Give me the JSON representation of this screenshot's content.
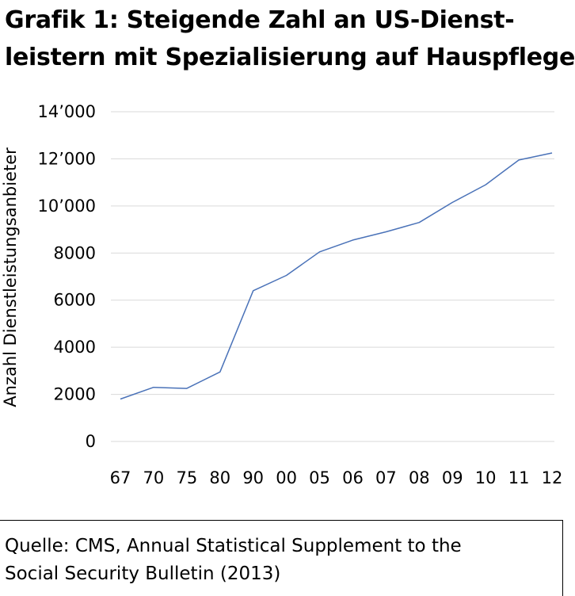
{
  "title": {
    "line1": "Grafik 1: Steigende Zahl an US-Dienst-",
    "line2": "leistern mit Spezialisierung auf Hauspflege"
  },
  "source": {
    "line1": "Quelle: CMS, Annual Statistical Supplement to the",
    "line2": "Social Security Bulletin (2013)"
  },
  "colors": {
    "line": "#4a72b8",
    "grid": "#d9d9d9"
  },
  "chart_data": {
    "type": "line",
    "title": "Grafik 1: Steigende Zahl an US-Dienstleistern mit Spezialisierung auf Hauspflege",
    "xlabel": "",
    "ylabel": "Anzahl Dienstleistungsanbieter",
    "categories": [
      "67",
      "70",
      "75",
      "80",
      "90",
      "00",
      "05",
      "06",
      "07",
      "08",
      "09",
      "10",
      "11",
      "12"
    ],
    "series": [
      {
        "values": [
          1800,
          2300,
          2250,
          2950,
          6400,
          7050,
          8050,
          8550,
          8900,
          9300,
          10150,
          10900,
          11950,
          12250
        ]
      }
    ],
    "ylim": [
      0,
      14000
    ],
    "yticks": [
      0,
      2000,
      4000,
      6000,
      8000,
      10000,
      12000,
      14000
    ],
    "ytick_labels": [
      "0",
      "2000",
      "4000",
      "6000",
      "8000",
      "10’000",
      "12’000",
      "14’000"
    ],
    "grid": true,
    "legend": "none"
  }
}
